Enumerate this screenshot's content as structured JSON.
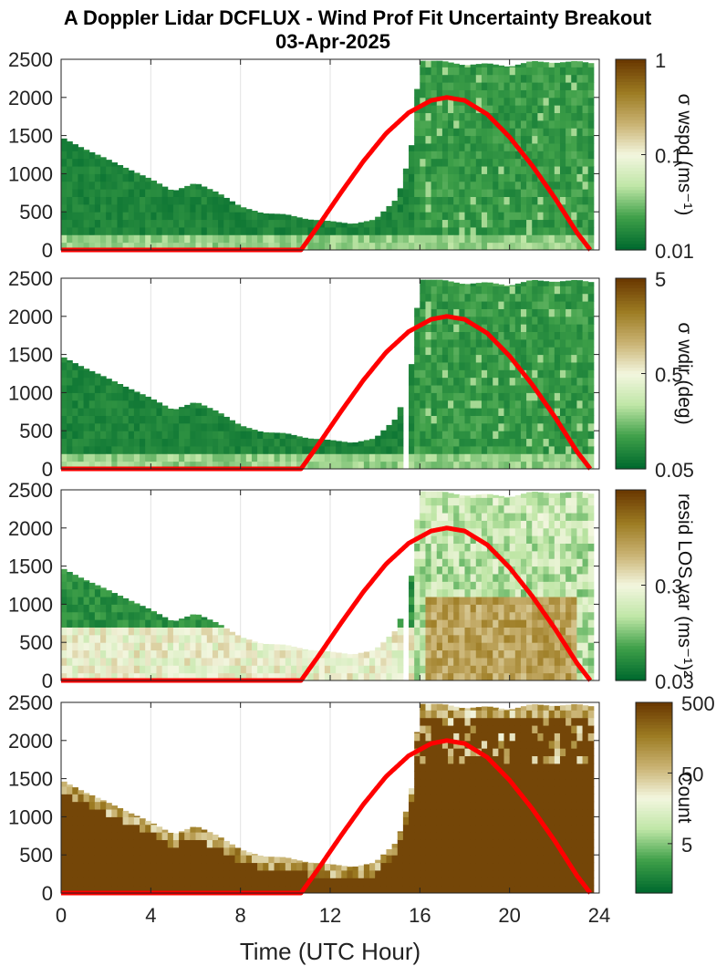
{
  "title_line1": "A Doppler Lidar DCFLUX - Wind Prof Fit Uncertainty Breakout",
  "title_line2": "03-Apr-2025",
  "xlabel": "Time (UTC Hour)",
  "colors": {
    "dark_green": "#006a2e",
    "mid_green": "#3fa049",
    "light_green": "#bfe6a6",
    "pale": "#f3f6df",
    "tan": "#c9b271",
    "olive": "#9c7b22",
    "brown": "#6b3a02",
    "sun_curve": "#ff0000"
  },
  "chart_data": [
    {
      "type": "heatmap",
      "panel": "sigma_wspd",
      "colorbar_label": "σ wspd (ms⁻¹)",
      "colorbar_ticks": [
        "1",
        "0.1",
        "0.01"
      ],
      "clim": [
        0.01,
        1
      ],
      "xlim": [
        0,
        24
      ],
      "ylim": [
        0,
        2500
      ],
      "xticks": [
        0,
        4,
        8,
        12,
        16,
        20,
        24
      ],
      "yticks": [
        0,
        500,
        1000,
        1500,
        2000,
        2500
      ],
      "grid": "vertical",
      "data_top_m": {
        "x": [
          0,
          1,
          2,
          3,
          4,
          5,
          6,
          7,
          8,
          9,
          10,
          11,
          12,
          13,
          14,
          15,
          15.6,
          16,
          17,
          18,
          19,
          20,
          21,
          22,
          23,
          23.6
        ],
        "y": [
          1480,
          1330,
          1200,
          1060,
          930,
          770,
          880,
          750,
          570,
          480,
          470,
          400,
          380,
          340,
          400,
          680,
          1300,
          2480,
          2480,
          2420,
          2450,
          2400,
          2480,
          2450,
          2480,
          2450
        ]
      },
      "sun_curve": {
        "x": [
          0,
          10.7,
          11.5,
          12.5,
          13.5,
          14.5,
          15.5,
          16.5,
          17.2,
          18,
          19,
          20,
          21,
          22,
          23,
          23.6
        ],
        "y": [
          0,
          0,
          330,
          760,
          1170,
          1530,
          1800,
          1960,
          2000,
          1960,
          1780,
          1480,
          1110,
          690,
          230,
          0
        ]
      }
    },
    {
      "type": "heatmap",
      "panel": "sigma_wdir",
      "colorbar_label": "σ wdir (deg)",
      "colorbar_ticks": [
        "5",
        "0.5",
        "0.05"
      ],
      "clim": [
        0.05,
        5
      ],
      "xlim": [
        0,
        24
      ],
      "ylim": [
        0,
        2500
      ],
      "xticks": [
        0,
        4,
        8,
        12,
        16,
        20,
        24
      ],
      "yticks": [
        0,
        500,
        1000,
        1500,
        2000,
        2500
      ],
      "grid": "vertical",
      "data_top_m": {
        "x": [
          0,
          1,
          2,
          3,
          4,
          5,
          6,
          7,
          8,
          9,
          10,
          11,
          12,
          13,
          14,
          15,
          15.6,
          16,
          17,
          18,
          19,
          20,
          21,
          22,
          23,
          23.6
        ],
        "y": [
          1480,
          1330,
          1200,
          1060,
          930,
          770,
          880,
          750,
          570,
          480,
          470,
          400,
          380,
          340,
          400,
          680,
          1300,
          2480,
          2480,
          2420,
          2450,
          2400,
          2480,
          2450,
          2480,
          2450
        ]
      },
      "sun_curve": {
        "x": [
          0,
          10.7,
          11.5,
          12.5,
          13.5,
          14.5,
          15.5,
          16.5,
          17.2,
          18,
          19,
          20,
          21,
          22,
          23,
          23.6
        ],
        "y": [
          0,
          0,
          330,
          760,
          1170,
          1530,
          1800,
          1960,
          2000,
          1960,
          1780,
          1480,
          1110,
          690,
          230,
          0
        ]
      }
    },
    {
      "type": "heatmap",
      "panel": "resid_los_var",
      "colorbar_label": "resid LOS var (ms⁻¹)²",
      "colorbar_ticks": [
        "0.3",
        "0.03"
      ],
      "clim": [
        0.03,
        3
      ],
      "xlim": [
        0,
        24
      ],
      "ylim": [
        0,
        2500
      ],
      "xticks": [
        0,
        4,
        8,
        12,
        16,
        20,
        24
      ],
      "yticks": [
        0,
        500,
        1000,
        1500,
        2000,
        2500
      ],
      "grid": "vertical",
      "data_top_m": {
        "x": [
          0,
          1,
          2,
          3,
          4,
          5,
          6,
          7,
          8,
          9,
          10,
          11,
          12,
          13,
          14,
          15,
          15.6,
          16,
          17,
          18,
          19,
          20,
          21,
          22,
          23,
          23.6
        ],
        "y": [
          1480,
          1330,
          1200,
          1060,
          930,
          770,
          880,
          750,
          570,
          480,
          470,
          400,
          380,
          340,
          400,
          680,
          1300,
          2480,
          2480,
          2420,
          2450,
          2400,
          2480,
          2450,
          2480,
          2450
        ]
      },
      "sun_curve": {
        "x": [
          0,
          10.7,
          11.5,
          12.5,
          13.5,
          14.5,
          15.5,
          16.5,
          17.2,
          18,
          19,
          20,
          21,
          22,
          23,
          23.6
        ],
        "y": [
          0,
          0,
          330,
          760,
          1170,
          1530,
          1800,
          1960,
          2000,
          1960,
          1780,
          1480,
          1110,
          690,
          230,
          0
        ]
      }
    },
    {
      "type": "heatmap",
      "panel": "count",
      "colorbar_label": "Count",
      "colorbar_ticks": [
        "500",
        "50",
        "5"
      ],
      "clim": [
        1,
        500
      ],
      "xlim": [
        0,
        24
      ],
      "ylim": [
        0,
        2500
      ],
      "xticks": [
        0,
        4,
        8,
        12,
        16,
        20,
        24
      ],
      "yticks": [
        0,
        500,
        1000,
        1500,
        2000,
        2500
      ],
      "grid": "vertical",
      "data_top_m": {
        "x": [
          0,
          1,
          2,
          3,
          4,
          5,
          6,
          7,
          8,
          9,
          10,
          11,
          12,
          13,
          14,
          15,
          15.6,
          16,
          17,
          18,
          19,
          20,
          21,
          22,
          23,
          23.6
        ],
        "y": [
          1480,
          1330,
          1200,
          1060,
          930,
          770,
          880,
          750,
          570,
          480,
          470,
          400,
          380,
          340,
          400,
          680,
          1300,
          2480,
          2480,
          2420,
          2450,
          2400,
          2480,
          2450,
          2480,
          2450
        ]
      },
      "sun_curve": {
        "x": [
          0,
          10.7,
          11.5,
          12.5,
          13.5,
          14.5,
          15.5,
          16.5,
          17.2,
          18,
          19,
          20,
          21,
          22,
          23,
          23.6
        ],
        "y": [
          0,
          0,
          330,
          760,
          1170,
          1530,
          1800,
          1960,
          2000,
          1960,
          1780,
          1480,
          1110,
          690,
          230,
          0
        ]
      }
    }
  ]
}
